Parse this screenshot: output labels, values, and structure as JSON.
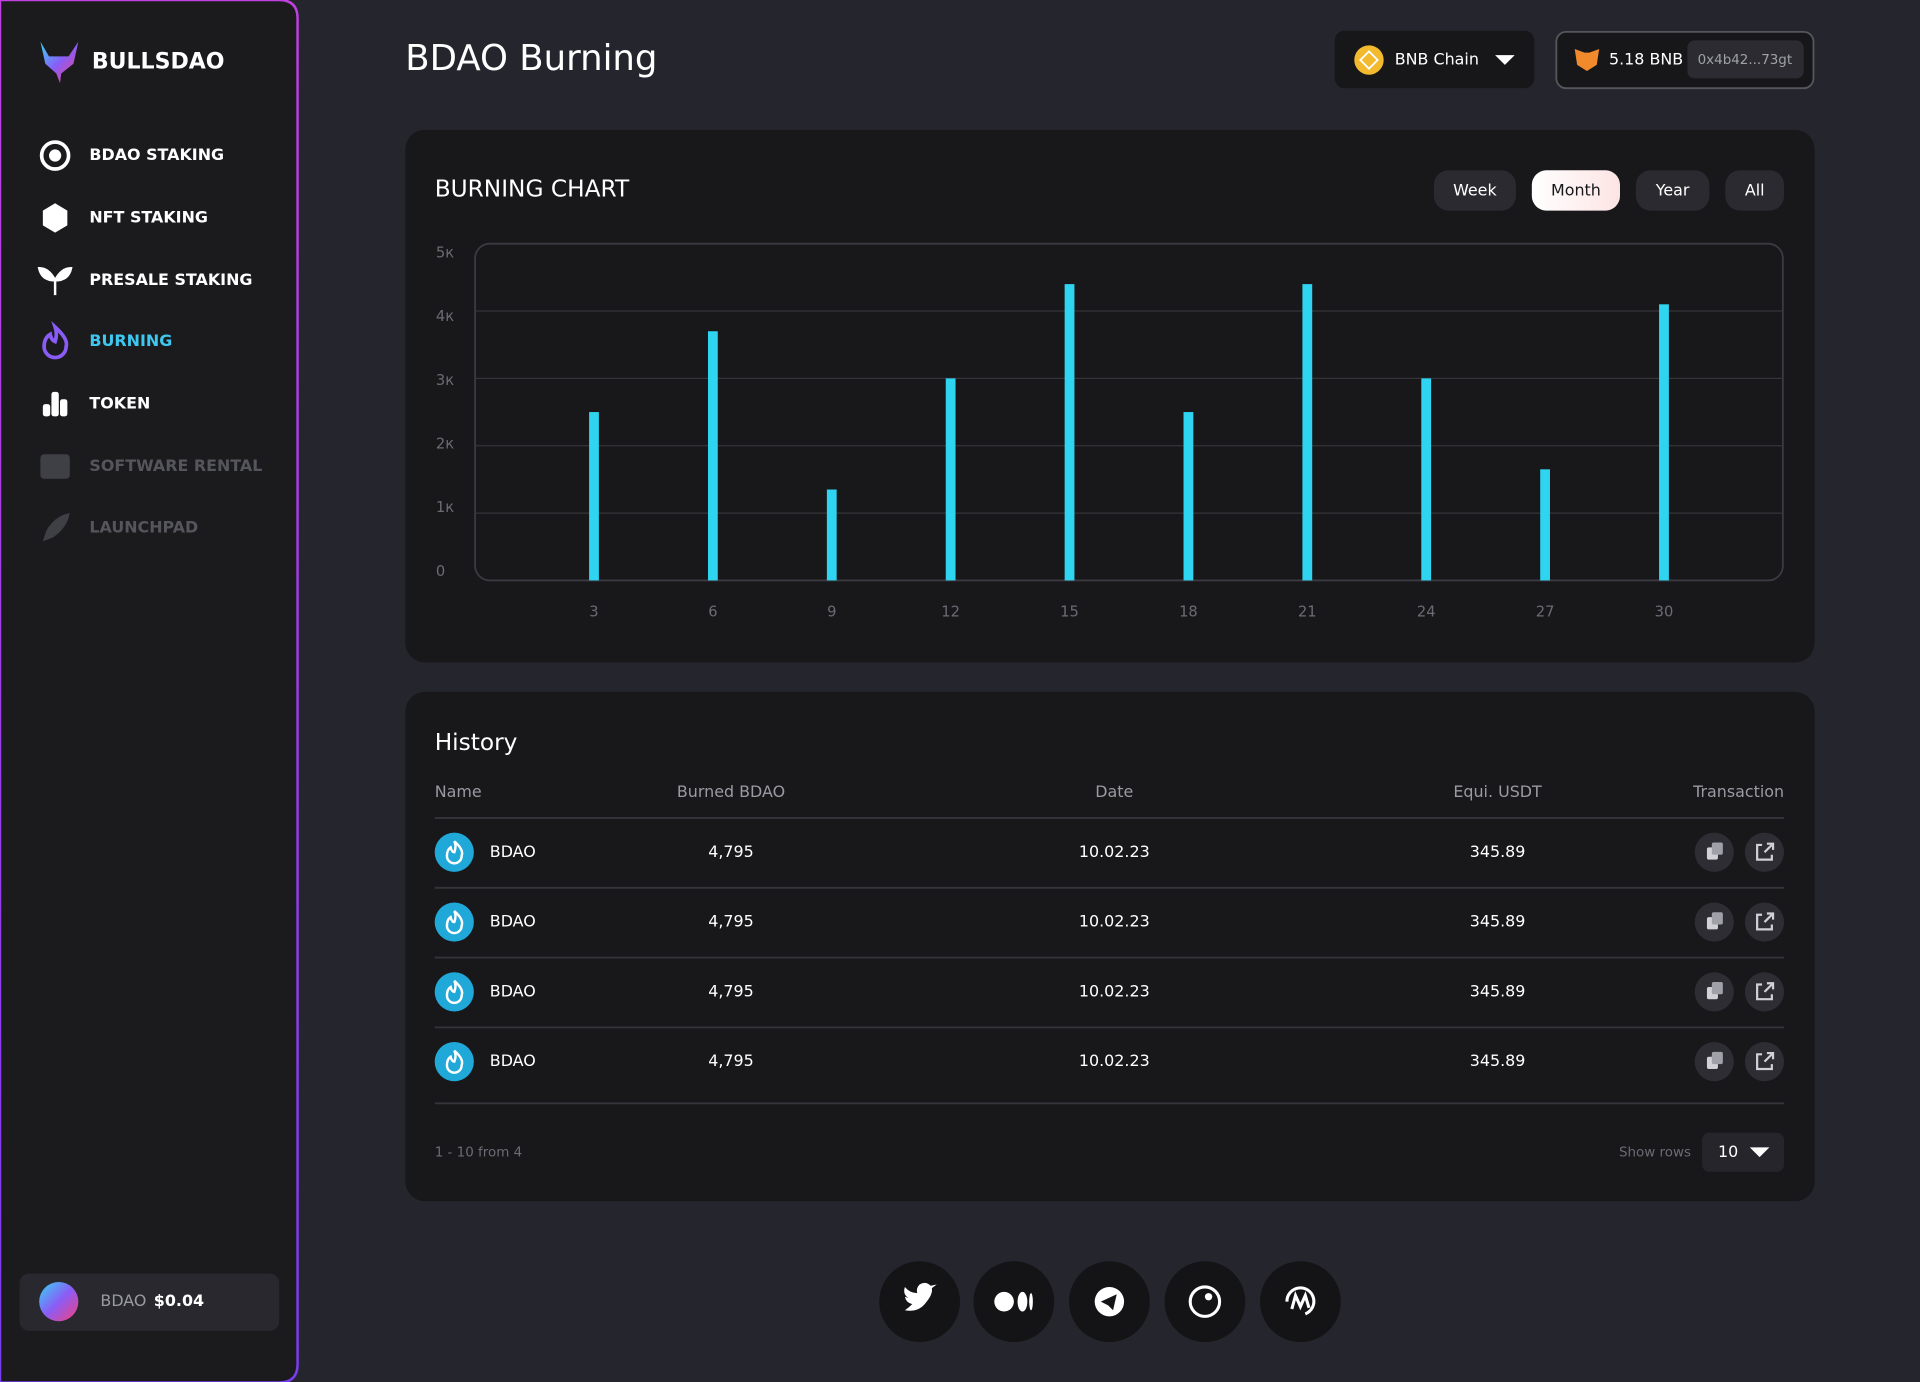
{
  "sidebar": {
    "brand": "BULLSDAO",
    "menu": [
      {
        "label": "BDAO STAKING"
      },
      {
        "label": "NFT STAKING"
      },
      {
        "label": "PRESALE STAKING"
      },
      {
        "label": "BURNING",
        "active": true
      },
      {
        "label": "TOKEN"
      },
      {
        "label": "SOFTWARE RENTAL",
        "disabled": true
      },
      {
        "label": "LAUNCHPAD",
        "disabled": true
      }
    ],
    "price": {
      "token": "BDAO",
      "value": "$0.04"
    }
  },
  "header": {
    "title": "BDAO Burning",
    "network": "BNB Chain",
    "balance": "5.18 BNB",
    "address": "0x4b42...73gt"
  },
  "chart_data": {
    "type": "bar",
    "title": "BURNING CHART",
    "periods": [
      "Week",
      "Month",
      "Year",
      "All"
    ],
    "active_period": "Month",
    "x": [
      3,
      6,
      9,
      12,
      15,
      18,
      21,
      24,
      27,
      30
    ],
    "values": [
      2500,
      3700,
      1350,
      3000,
      4400,
      2500,
      4400,
      3000,
      1650,
      4100
    ],
    "color": "#2fd4f0",
    "xlim": [
      0,
      33
    ],
    "xticks": [
      3,
      6,
      9,
      12,
      15,
      18,
      21,
      24,
      27,
      30
    ],
    "ylim": [
      0,
      5000
    ],
    "yticks": [
      0,
      {
        "value": 1000,
        "label": "1к"
      },
      {
        "value": 2000,
        "label": "2к"
      },
      {
        "value": 3000,
        "label": "3к"
      },
      {
        "value": 4000,
        "label": "4к"
      },
      {
        "value": 5000,
        "label": "5к"
      }
    ],
    "grid": true
  },
  "history": {
    "title": "History",
    "columns": [
      "Name",
      "Burned BDAO",
      "Date",
      "Equi. USDT",
      "Transaction"
    ],
    "rows": [
      [
        "BDAO",
        "4,795",
        "10.02.23",
        "345.89"
      ],
      [
        "BDAO",
        "4,795",
        "10.02.23",
        "345.89"
      ],
      [
        "BDAO",
        "4,795",
        "10.02.23",
        "345.89"
      ],
      [
        "BDAO",
        "4,795",
        "10.02.23",
        "345.89"
      ]
    ],
    "pagination": "1 - 10 from 4",
    "rows_label": "Show rows",
    "rows_per_page": "10"
  }
}
